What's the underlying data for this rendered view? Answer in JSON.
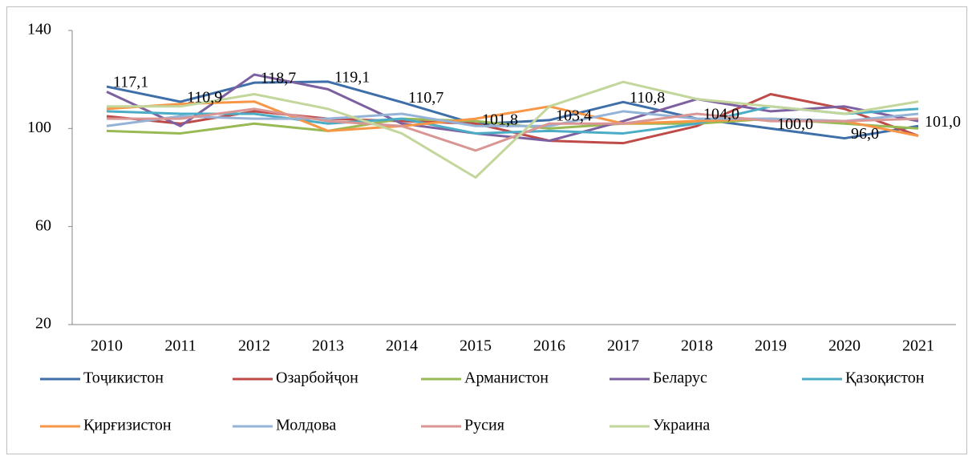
{
  "chart_data": {
    "type": "line",
    "categories": [
      "2010",
      "2011",
      "2012",
      "2013",
      "2014",
      "2015",
      "2016",
      "2017",
      "2018",
      "2019",
      "2020",
      "2021"
    ],
    "series": [
      {
        "name": "Тоҷикистон",
        "color": "#3e6fa8",
        "values": [
          117.1,
          110.9,
          118.7,
          119.1,
          110.7,
          101.8,
          103.4,
          110.8,
          104.0,
          100.0,
          96.0,
          101.0
        ],
        "value_labels": [
          "117,1",
          "110,9",
          "118,7",
          "119,1",
          "110,7",
          "101,8",
          "103,4",
          "110,8",
          "104,0",
          "100,0",
          "96,0",
          "101,0"
        ]
      },
      {
        "name": "Озарбойҷон",
        "color": "#be4b48",
        "values": [
          105,
          102,
          107,
          104,
          103,
          102,
          95,
          94,
          101,
          114,
          108,
          97
        ]
      },
      {
        "name": "Арманистон",
        "color": "#98b954",
        "values": [
          99,
          98,
          102,
          99,
          104,
          103,
          100,
          102,
          102,
          104,
          102,
          100
        ]
      },
      {
        "name": "Беларус",
        "color": "#7d60a0",
        "values": [
          115,
          101,
          122,
          116,
          102,
          98,
          95,
          103,
          112,
          107,
          109,
          103
        ]
      },
      {
        "name": "Қазоқистон",
        "color": "#4bacc6",
        "values": [
          107,
          106,
          106,
          102,
          104,
          98,
          99,
          98,
          102,
          109,
          106,
          108
        ]
      },
      {
        "name": "Қирғизистон",
        "color": "#f79646",
        "values": [
          108,
          110,
          111,
          99,
          101,
          104,
          109,
          102,
          103,
          104,
          103,
          97
        ]
      },
      {
        "name": "Молдова",
        "color": "#95b3d7",
        "values": [
          101,
          105,
          104,
          104,
          106,
          101,
          101,
          107,
          104,
          104,
          103,
          106
        ]
      },
      {
        "name": "Русия",
        "color": "#d99694",
        "values": [
          104,
          104,
          108,
          103,
          101,
          91,
          102,
          102,
          106,
          103,
          103,
          104
        ]
      },
      {
        "name": "Украина",
        "color": "#c3d69b",
        "values": [
          109,
          109,
          114,
          108,
          98,
          80,
          109,
          119,
          112,
          109,
          106,
          111
        ]
      }
    ],
    "ylim": [
      20,
      140
    ],
    "yticks": [
      20,
      60,
      100,
      140
    ],
    "grid": false,
    "legend": "bottom"
  }
}
